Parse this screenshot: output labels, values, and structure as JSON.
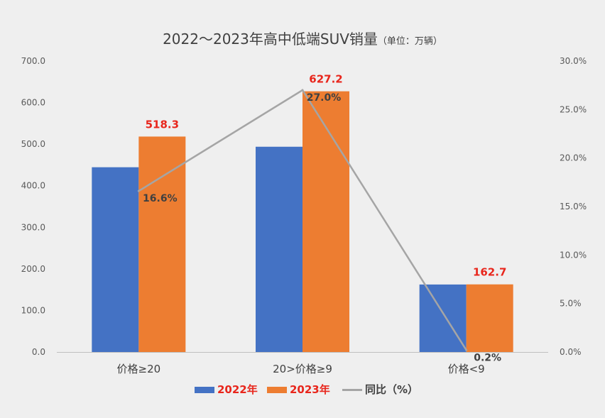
{
  "chart_data": {
    "type": "bar",
    "title": "2022～2023年高中低端SUV销量",
    "subtitle": "（单位：万辆）",
    "categories": [
      "价格≥20",
      "20>价格≥9",
      "价格<9"
    ],
    "series": [
      {
        "name": "2022年",
        "type": "bar",
        "axis": "left",
        "color": "#4472c4",
        "values": [
          444.5,
          493.8,
          162.4
        ],
        "show_labels": false
      },
      {
        "name": "2023年",
        "type": "bar",
        "axis": "left",
        "color": "#ed7d31",
        "values": [
          518.3,
          627.2,
          162.7
        ],
        "labels": [
          "518.3",
          "627.2",
          "162.7"
        ],
        "show_labels": true
      },
      {
        "name": "同比（%）",
        "type": "line",
        "axis": "right",
        "color": "#a5a5a5",
        "values": [
          16.6,
          27.0,
          0.2
        ],
        "labels": [
          "16.6%",
          "27.0%",
          "0.2%"
        ],
        "show_labels": true
      }
    ],
    "y_left": {
      "min": 0,
      "max": 700,
      "step": 100,
      "ticks": [
        "0.0",
        "100.0",
        "200.0",
        "300.0",
        "400.0",
        "500.0",
        "600.0",
        "700.0"
      ]
    },
    "y_right": {
      "min": 0,
      "max": 30,
      "step": 5,
      "ticks": [
        "0.0%",
        "5.0%",
        "10.0%",
        "15.0%",
        "20.0%",
        "25.0%",
        "30.0%"
      ]
    },
    "legend_position": "bottom",
    "grid": false,
    "label_color": "#e8261c"
  }
}
